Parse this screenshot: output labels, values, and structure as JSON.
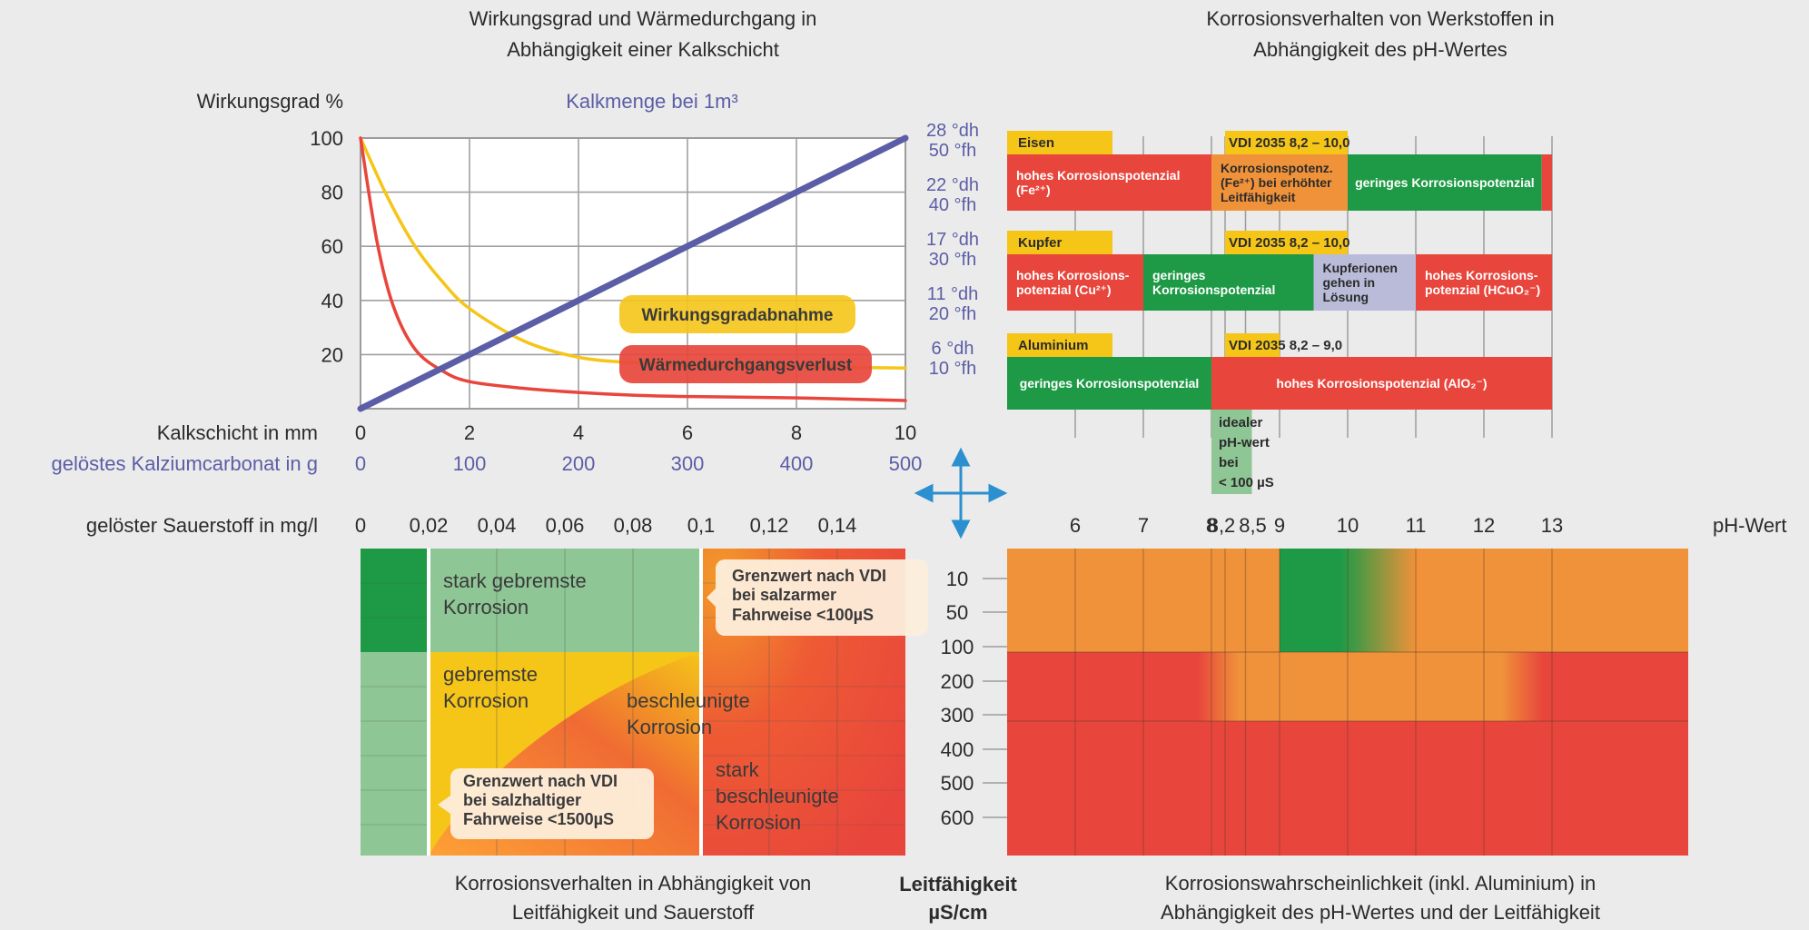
{
  "colors": {
    "background": "#ebebeb",
    "text": "#2b2b2b",
    "blue": "#5b5ea6",
    "grid": "#a0a0a0",
    "yellow": "#f5c518",
    "orange": "#f0923a",
    "red": "#e8463c",
    "green": "#1e9a46",
    "light_green": "#8fc695",
    "lavender": "#b9bbd8",
    "arrow": "#2b8fd0"
  },
  "chart_data": [
    {
      "id": "efficiency",
      "type": "line",
      "title": [
        "Wirkungsgrad und Wärmedurchgang in",
        "Abhängigkeit einer Kalkschicht"
      ],
      "ylabel": "Wirkungsgrad %",
      "top_label": "Kalkmenge bei 1m³",
      "ylim": [
        0,
        100
      ],
      "xlim": [
        0,
        10
      ],
      "y_ticks": [
        "100",
        "80",
        "60",
        "40",
        "20"
      ],
      "x_label_1": "Kalkschicht in mm",
      "x_ticks_1": [
        "0",
        "2",
        "4",
        "6",
        "8",
        "10"
      ],
      "x_label_2": "gelöstes Kalziumcarbonat in g",
      "x_ticks_2": [
        "0",
        "100",
        "200",
        "300",
        "400",
        "500"
      ],
      "right_axis": [
        [
          "28 °dh",
          "50 °fh"
        ],
        [
          "22 °dh",
          "40 °fh"
        ],
        [
          "17 °dh",
          "30 °fh"
        ],
        [
          "11 °dh",
          "20 °fh"
        ],
        [
          "6 °dh",
          "10 °fh"
        ]
      ],
      "series": [
        {
          "name": "Kalkmenge",
          "x": [
            0,
            10
          ],
          "y": [
            0,
            100
          ]
        },
        {
          "name": "Wirkungsgradabnahme",
          "x": [
            0,
            0.5,
            1,
            1.5,
            2,
            3,
            4,
            5,
            6,
            7,
            8,
            10
          ],
          "y": [
            100,
            78,
            60,
            47,
            37,
            25,
            19,
            17,
            16,
            15.5,
            15.5,
            15
          ]
        },
        {
          "name": "Wärmedurchgangsverlust",
          "x": [
            0,
            0.3,
            0.6,
            1,
            1.5,
            2,
            3,
            4,
            5,
            6,
            8,
            10
          ],
          "y": [
            100,
            62,
            38,
            22,
            14,
            10,
            7.5,
            6,
            5,
            4.5,
            4,
            3
          ]
        }
      ],
      "annotations": [
        "Wirkungsgradabnahme",
        "Wärmedurchgangsverlust"
      ]
    },
    {
      "id": "corrosion_ph",
      "type": "table",
      "title": [
        "Korrosionsverhalten von Werkstoffen in",
        "Abhängigkeit des pH-Wertes"
      ],
      "ph_ticks": [
        "6",
        "7",
        "8",
        "8,2",
        "8,5",
        "9",
        "10",
        "11",
        "12",
        "13"
      ],
      "ph_label": "pH-Wert",
      "materials": [
        {
          "name": "Eisen",
          "vdi": "VDI 2035 8,2 – 10,0",
          "segments": [
            {
              "from": 5.0,
              "to": 8.0,
              "text": "hohes Korrosionspotenzial (Fe²⁺)"
            },
            {
              "from": 8.0,
              "to": 10.0,
              "text": "Korrosionspotenz. (Fe²⁺) bei erhöhter Leitfähigkeit"
            },
            {
              "from": 10.0,
              "to": 12.85,
              "text": "geringes Korrosionspotenzial"
            },
            {
              "from": 12.85,
              "to": 13.0,
              "text": ""
            }
          ]
        },
        {
          "name": "Kupfer",
          "vdi": "VDI 2035 8,2 – 10,0",
          "segments": [
            {
              "from": 5.0,
              "to": 7.0,
              "text": "hohes Korrosions- potenzial (Cu²⁺)"
            },
            {
              "from": 7.0,
              "to": 9.5,
              "text": "geringes Korrosionspotenzial"
            },
            {
              "from": 9.5,
              "to": 11.0,
              "text": "Kupferionen gehen in Lösung"
            },
            {
              "from": 11.0,
              "to": 13.0,
              "text": "hohes Korrosions- potenzial (HCuO₂⁻)"
            }
          ]
        },
        {
          "name": "Aluminium",
          "vdi": "VDI 2035 8,2 – 9,0",
          "segments": [
            {
              "from": 5.0,
              "to": 8.0,
              "text": "geringes Korrosionspotenzial"
            },
            {
              "from": 8.0,
              "to": 13.0,
              "text": "hohes Korrosionspotenzial (AlO₂⁻)"
            }
          ]
        }
      ],
      "ideal_box": [
        "idealer",
        "pH-wert",
        "bei",
        "< 100 µS"
      ]
    },
    {
      "id": "corrosion_oxygen",
      "type": "heatmap",
      "title": [
        "Korrosionsverhalten in Abhängigkeit von",
        "Leitfähigkeit und Sauerstoff"
      ],
      "xlabel": "gelöster Sauerstoff in mg/l",
      "x_ticks": [
        "0",
        "0,02",
        "0,04",
        "0,06",
        "0,08",
        "0,1",
        "0,12",
        "0,14"
      ],
      "zones": [
        [
          "stark gebremste",
          "Korrosion"
        ],
        [
          "gebremste",
          "Korrosion"
        ],
        [
          "beschleunigte",
          "Korrosion"
        ],
        [
          "stark",
          "beschleunigte",
          "Korrosion"
        ]
      ],
      "callouts": [
        [
          "Grenzwert nach VDI",
          "bei salzarmer",
          "Fahrweise <100µS"
        ],
        [
          "Grenzwert nach VDI",
          "bei salzhaltiger",
          "Fahrweise <1500µS"
        ]
      ]
    },
    {
      "id": "conductivity_axis",
      "type": "table",
      "ylabel": [
        "Leitfähigkeit",
        "µS/cm"
      ],
      "ticks": [
        "10",
        "50",
        "100",
        "200",
        "300",
        "400",
        "500",
        "600"
      ]
    },
    {
      "id": "corrosion_probability",
      "type": "heatmap",
      "title": [
        "Korrosionswahrscheinlichkeit (inkl. Aluminium) in",
        "Abhängigkeit des pH-Wertes und der Leitfähigkeit"
      ],
      "ph_ticks": [
        "6",
        "7",
        "8",
        "8,2",
        "8,5",
        "9",
        "10",
        "11",
        "12",
        "13"
      ]
    }
  ]
}
